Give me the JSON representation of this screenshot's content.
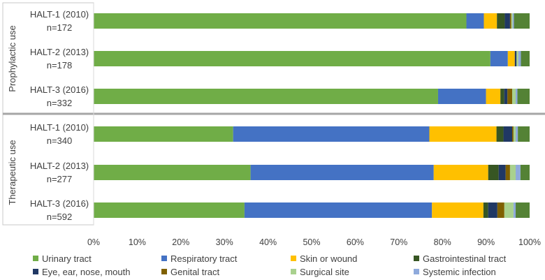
{
  "chart_data": {
    "type": "bar",
    "orientation": "horizontal",
    "stacked": "percent",
    "title": "",
    "xlabel": "",
    "ylabel": "",
    "xlim": [
      0,
      100
    ],
    "x_ticks": [
      "0%",
      "10%",
      "20%",
      "30%",
      "40%",
      "50%",
      "60%",
      "70%",
      "80%",
      "90%",
      "100%"
    ],
    "legend_position": "bottom",
    "grid": false,
    "groups": [
      {
        "name": "Prophylactic use",
        "rows": [
          {
            "label": "HALT-1 (2010)",
            "n": "n=172",
            "values": [
              85.5,
              4.0,
              3.0,
              1.8,
              1.2,
              0.3,
              0.3,
              0.3,
              3.6
            ]
          },
          {
            "label": "HALT-2 (2013)",
            "n": "n=178",
            "values": [
              91.0,
              4.0,
              1.6,
              0.0,
              0.4,
              0.0,
              0.4,
              0.6,
              2.0
            ]
          },
          {
            "label": "HALT-3 (2016)",
            "n": "n=332",
            "values": [
              79.0,
              11.0,
              3.3,
              0.9,
              0.7,
              1.1,
              0.8,
              0.4,
              2.8
            ]
          }
        ]
      },
      {
        "name": "Therapeutic use",
        "rows": [
          {
            "label": "HALT-1 (2010)",
            "n": "n=340",
            "values": [
              32.0,
              45.0,
              15.4,
              1.6,
              2.0,
              0.3,
              0.5,
              0.5,
              2.7
            ]
          },
          {
            "label": "HALT-2 (2013)",
            "n": "n=277",
            "values": [
              36.0,
              42.0,
              12.5,
              2.4,
              1.6,
              1.0,
              1.3,
              1.1,
              2.1
            ]
          },
          {
            "label": "HALT-3 (2016)",
            "n": "n=592",
            "values": [
              34.6,
              43.0,
              11.8,
              1.1,
              2.1,
              1.6,
              2.1,
              0.5,
              3.2
            ]
          }
        ]
      }
    ],
    "series": [
      {
        "name": "Urinary tract",
        "color": "#70ad47"
      },
      {
        "name": "Respiratory tract",
        "color": "#4472c4"
      },
      {
        "name": "Skin or wound",
        "color": "#ffc000"
      },
      {
        "name": "Gastrointestinal tract",
        "color": "#375623"
      },
      {
        "name": "Eye, ear, nose, mouth",
        "color": "#203864"
      },
      {
        "name": "Genital tract",
        "color": "#7f6000"
      },
      {
        "name": "Surgical site",
        "color": "#a9d18e"
      },
      {
        "name": "Systemic infection",
        "color": "#8faadc"
      },
      {
        "name": "",
        "color": "#548235"
      }
    ]
  }
}
